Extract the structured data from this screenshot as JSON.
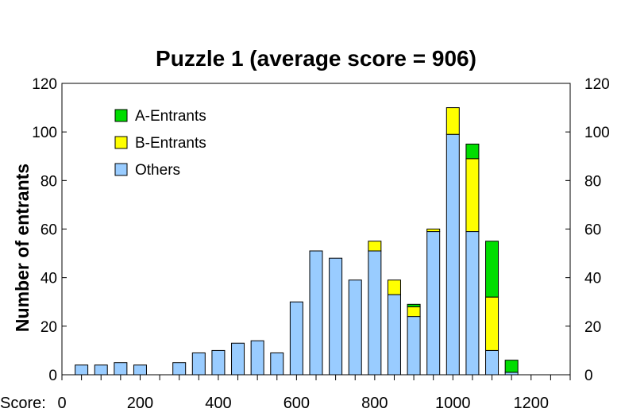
{
  "chart_data": {
    "type": "bar",
    "stacked": true,
    "title": "Puzzle 1 (average score = 906)",
    "xlabel": "Score:",
    "ylabel": "Number of entrants",
    "ylim": [
      0,
      120
    ],
    "xlim": [
      0,
      1300
    ],
    "yticks": [
      0,
      20,
      40,
      60,
      80,
      100,
      120
    ],
    "xticks": [
      0,
      200,
      400,
      600,
      800,
      1000,
      1200
    ],
    "x": [
      50,
      100,
      150,
      200,
      250,
      300,
      350,
      400,
      450,
      500,
      550,
      600,
      650,
      700,
      750,
      800,
      850,
      900,
      950,
      1000,
      1050,
      1100,
      1150,
      1200,
      1250
    ],
    "series": [
      {
        "name": "Others",
        "color": "#99CCFF",
        "values": [
          4,
          4,
          5,
          4,
          0,
          5,
          9,
          10,
          13,
          14,
          9,
          30,
          51,
          48,
          39,
          51,
          33,
          24,
          59,
          99,
          59,
          10,
          1,
          0,
          0
        ]
      },
      {
        "name": "B-Entrants",
        "color": "#FFFF00",
        "values": [
          0,
          0,
          0,
          0,
          0,
          0,
          0,
          0,
          0,
          0,
          0,
          0,
          0,
          0,
          0,
          4,
          6,
          4,
          1,
          11,
          30,
          22,
          0,
          0,
          0
        ]
      },
      {
        "name": "A-Entrants",
        "color": "#00DD00",
        "values": [
          0,
          0,
          0,
          0,
          0,
          0,
          0,
          0,
          0,
          0,
          0,
          0,
          0,
          0,
          0,
          0,
          0,
          1,
          0,
          0,
          6,
          23,
          5,
          0,
          0
        ]
      }
    ],
    "legend_order": [
      "A-Entrants",
      "B-Entrants",
      "Others"
    ],
    "legend_position": "top-left",
    "grid": false,
    "right_axis_mirror": true
  }
}
